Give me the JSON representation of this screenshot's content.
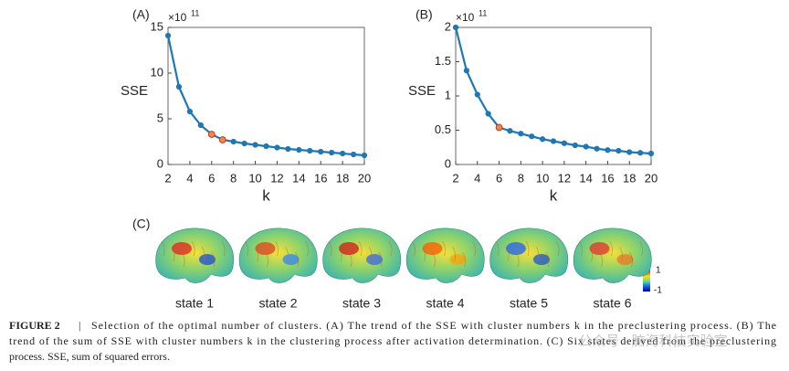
{
  "chart_data": [
    {
      "type": "line",
      "panel": "(A)",
      "ylabel": "SSE",
      "xlabel": "k",
      "multiplier": {
        "base": "×10",
        "exponent": "11"
      },
      "x": [
        2,
        3,
        4,
        5,
        6,
        7,
        8,
        9,
        10,
        11,
        12,
        13,
        14,
        15,
        16,
        17,
        18,
        19,
        20
      ],
      "values": [
        14.1,
        8.5,
        5.8,
        4.3,
        3.3,
        2.7,
        2.5,
        2.3,
        2.15,
        2.0,
        1.85,
        1.7,
        1.6,
        1.5,
        1.4,
        1.3,
        1.2,
        1.1,
        1.0
      ],
      "color": "#1f77b4",
      "highlight_x": [
        6,
        7
      ],
      "highlight_color": "#f4874b",
      "xlim": [
        2,
        20
      ],
      "xticks": [
        2,
        4,
        6,
        8,
        10,
        12,
        14,
        16,
        18,
        20
      ],
      "ylim": [
        0,
        15
      ],
      "yticks": [
        0,
        5,
        10,
        15
      ]
    },
    {
      "type": "line",
      "panel": "(B)",
      "ylabel": "SSE",
      "xlabel": "k",
      "multiplier": {
        "base": "×10",
        "exponent": "11"
      },
      "x": [
        2,
        3,
        4,
        5,
        6,
        7,
        8,
        9,
        10,
        11,
        12,
        13,
        14,
        15,
        16,
        17,
        18,
        19,
        20
      ],
      "values": [
        2.0,
        1.37,
        1.02,
        0.74,
        0.54,
        0.49,
        0.45,
        0.41,
        0.37,
        0.34,
        0.31,
        0.28,
        0.26,
        0.23,
        0.21,
        0.2,
        0.18,
        0.17,
        0.16
      ],
      "color": "#1f77b4",
      "highlight_x": [
        6
      ],
      "highlight_color": "#f4874b",
      "xlim": [
        2,
        20
      ],
      "xticks": [
        2,
        4,
        6,
        8,
        10,
        12,
        14,
        16,
        18,
        20
      ],
      "ylim": [
        0,
        2
      ],
      "yticks": [
        0,
        0.5,
        1,
        1.5,
        2
      ]
    }
  ],
  "panel_c": {
    "label": "(C)",
    "states": [
      "state 1",
      "state 2",
      "state 3",
      "state 4",
      "state 5",
      "state 6"
    ],
    "colorbar_ticks": [
      1,
      -1
    ]
  },
  "caption": {
    "label": "FIGURE 2",
    "separator": "|",
    "lines": [
      "Selection of the optimal number of clusters. (A) The trend of the SSE with cluster numbers k in the preclustering process. (B) The",
      "trend of the sum of SSE with cluster numbers k in the clustering process after activation determination. (C) Six states derived from the preclustering",
      "process. SSE, sum of squared errors."
    ]
  },
  "watermark": "公众号 · 脑海科技实验室"
}
